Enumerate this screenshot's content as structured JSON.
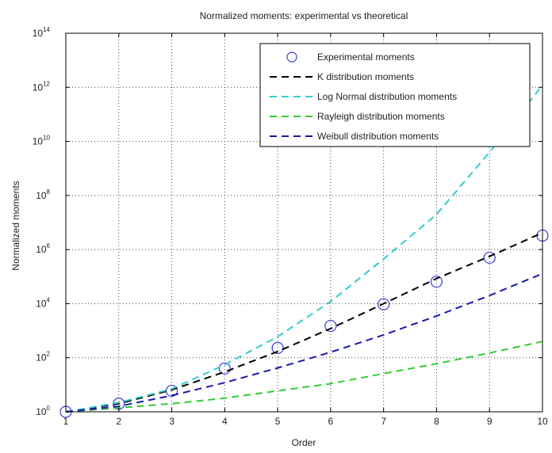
{
  "chart_data": {
    "type": "line",
    "title": "Normalized moments: experimental vs theoretical",
    "xlabel": "Order",
    "ylabel": "Normalized moments",
    "x": [
      1,
      2,
      3,
      4,
      5,
      6,
      7,
      8,
      9,
      10
    ],
    "xlim": [
      1,
      10
    ],
    "ylim": [
      1,
      100000000000000.0
    ],
    "yscale": "log",
    "x_ticks": [
      "1",
      "2",
      "3",
      "4",
      "5",
      "6",
      "7",
      "8",
      "9",
      "10"
    ],
    "y_ticks": [
      {
        "base": "10",
        "exp": "0",
        "value": 1
      },
      {
        "base": "10",
        "exp": "2",
        "value": 100
      },
      {
        "base": "10",
        "exp": "4",
        "value": 10000
      },
      {
        "base": "10",
        "exp": "6",
        "value": 1000000
      },
      {
        "base": "10",
        "exp": "8",
        "value": 100000000
      },
      {
        "base": "10",
        "exp": "10",
        "value": 10000000000
      },
      {
        "base": "10",
        "exp": "12",
        "value": 1000000000000
      },
      {
        "base": "10",
        "exp": "14",
        "value": 100000000000000
      }
    ],
    "grid": true,
    "legend_position": "top-right",
    "series": [
      {
        "name": "Experimental moments",
        "style": "markers",
        "marker": "circle",
        "color": "#3b3bd6",
        "values": [
          1,
          2,
          6,
          40,
          230,
          1500,
          9500,
          65000,
          500000,
          3300000
        ]
      },
      {
        "name": "K distribution moments",
        "style": "dashed",
        "color": "#000000",
        "values": [
          1,
          2,
          6.5,
          30,
          170,
          1200,
          10000,
          85000,
          560000,
          4200000
        ]
      },
      {
        "name": "Log Normal distribution moments",
        "style": "dashed",
        "color": "#33cccc",
        "values": [
          1,
          2.2,
          7,
          55,
          600,
          12000,
          450000,
          20000000,
          4000000000,
          1200000000000
        ]
      },
      {
        "name": "Rayleigh distribution moments",
        "style": "dashed",
        "color": "#33cc33",
        "values": [
          1,
          1.4,
          2,
          3.2,
          6,
          11,
          26,
          60,
          150,
          400
        ]
      },
      {
        "name": "Weibull distribution moments",
        "style": "dashed",
        "color": "#1a1aa8",
        "values": [
          1,
          1.6,
          4,
          12,
          42,
          160,
          700,
          3500,
          20000,
          130000
        ]
      }
    ]
  }
}
